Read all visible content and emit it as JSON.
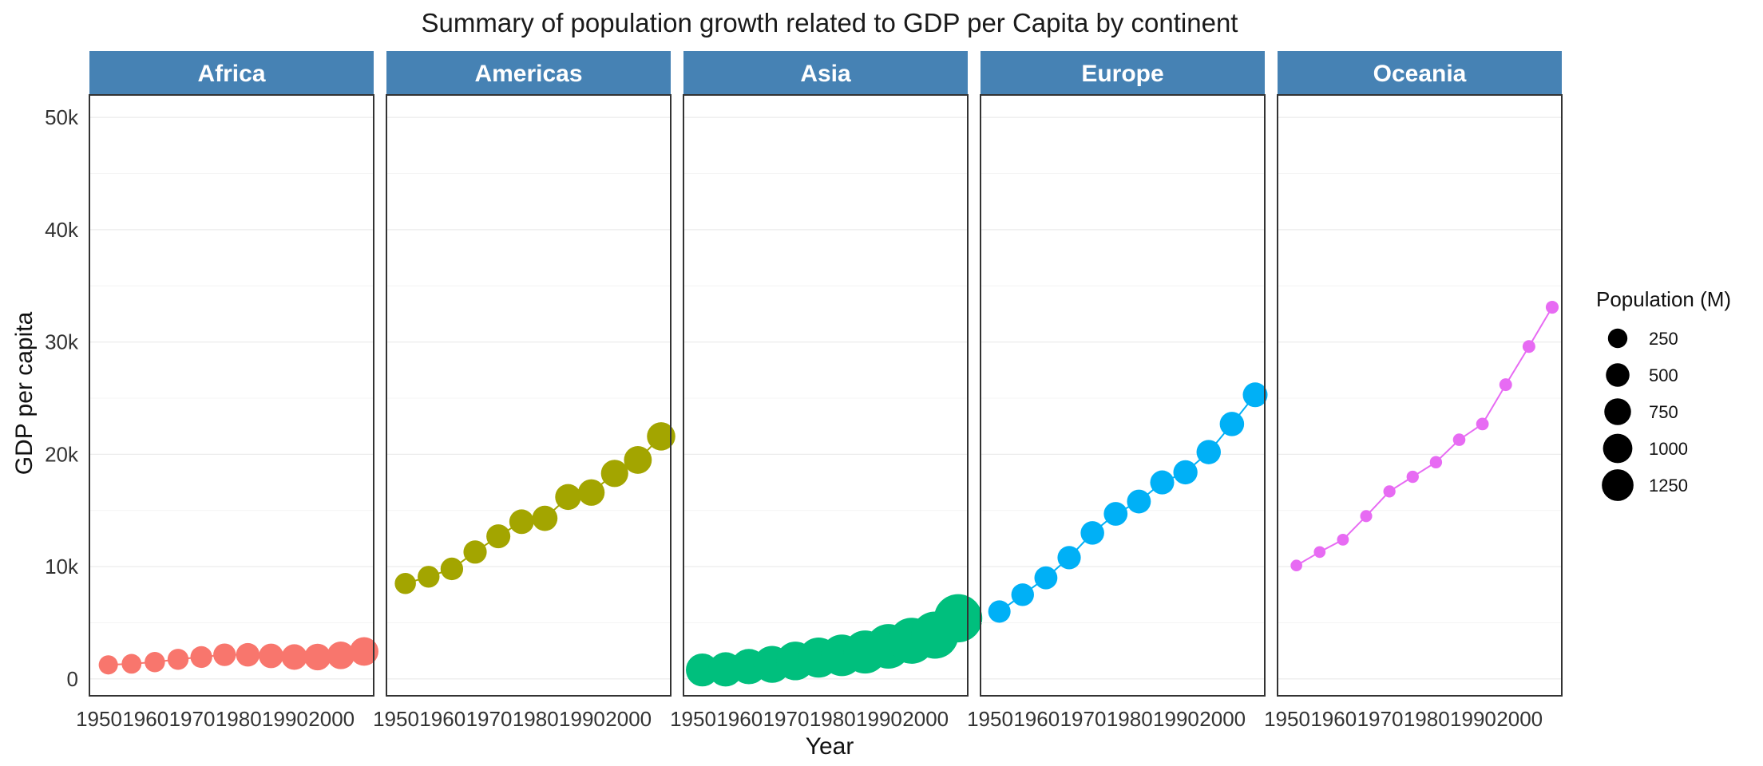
{
  "chart_data": {
    "type": "line",
    "title": "Summary of population growth related to GDP per Capita by continent",
    "xlabel": "Year",
    "ylabel": "GDP per capita",
    "x_ticks": [
      1950,
      1960,
      1970,
      1980,
      1990,
      2000
    ],
    "x_tick_labels": [
      "1950",
      "1960",
      "1970",
      "1980",
      "1990",
      "2000"
    ],
    "xlim": [
      1950,
      2007
    ],
    "y_ticks": [
      0,
      10000,
      20000,
      30000,
      40000,
      50000
    ],
    "y_tick_labels": [
      "0",
      "10k",
      "20k",
      "30k",
      "40k",
      "50k"
    ],
    "ylim": [
      -1500,
      52000
    ],
    "grid": true,
    "years": [
      1952,
      1957,
      1962,
      1967,
      1972,
      1977,
      1982,
      1987,
      1992,
      1997,
      2002,
      2007
    ],
    "series": [
      {
        "name": "Africa",
        "color": "#F8766D",
        "values": [
          1250,
          1350,
          1500,
          1750,
          1950,
          2150,
          2150,
          2050,
          1950,
          1950,
          2100,
          2450
        ],
        "population_m": [
          237,
          264,
          297,
          336,
          380,
          435,
          500,
          575,
          660,
          745,
          835,
          930
        ]
      },
      {
        "name": "Americas",
        "color": "#A3A500",
        "values": [
          8500,
          9100,
          9800,
          11300,
          12700,
          14000,
          14300,
          16200,
          16600,
          18300,
          19500,
          21600
        ],
        "population_m": [
          345,
          386,
          433,
          480,
          530,
          578,
          630,
          682,
          739,
          797,
          849,
          899
        ]
      },
      {
        "name": "Asia",
        "color": "#00BF7D",
        "values": [
          800,
          850,
          1100,
          1300,
          1600,
          1900,
          2100,
          2400,
          2900,
          3400,
          3900,
          5400
        ],
        "population_m": [
          1395,
          1562,
          1697,
          1906,
          2150,
          2385,
          2610,
          2871,
          3133,
          3383,
          3601,
          3812
        ]
      },
      {
        "name": "Europe",
        "color": "#00B0F6",
        "values": [
          6000,
          7500,
          9000,
          10800,
          13000,
          14700,
          15800,
          17500,
          18400,
          20200,
          22700,
          25300
        ],
        "population_m": [
          418,
          438,
          460,
          481,
          500,
          512,
          520,
          531,
          546,
          555,
          559,
          587
        ]
      },
      {
        "name": "Oceania",
        "color": "#E76BF3",
        "values": [
          10100,
          11300,
          12400,
          14500,
          16700,
          18000,
          19300,
          21300,
          22700,
          26200,
          29600,
          33100
        ],
        "population_m": [
          11,
          12,
          13,
          15,
          17,
          18,
          19,
          21,
          23,
          25,
          26,
          28
        ]
      }
    ],
    "legend": {
      "title": "Population (M)",
      "placement": "right",
      "entries": [
        {
          "label": "250",
          "value": 250
        },
        {
          "label": "500",
          "value": 500
        },
        {
          "label": "750",
          "value": 750
        },
        {
          "label": "1000",
          "value": 1000
        },
        {
          "label": "1250",
          "value": 1250
        }
      ]
    },
    "strip_color": "#4682B4"
  }
}
